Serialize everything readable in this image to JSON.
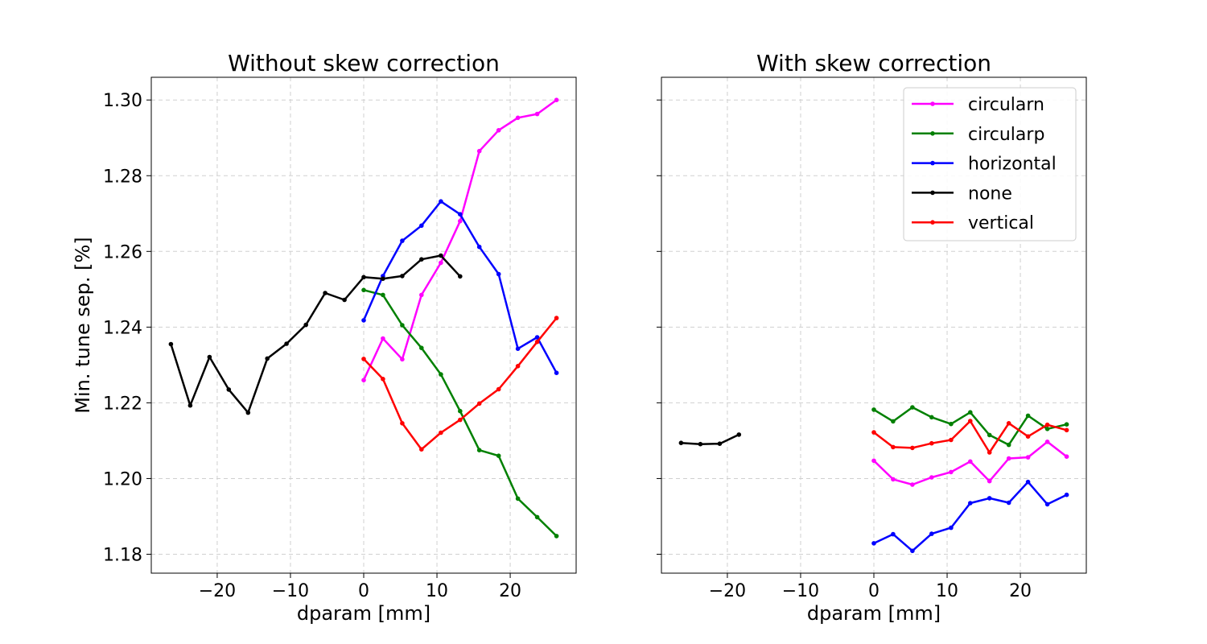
{
  "chart_data": [
    {
      "type": "line",
      "title": "Without skew correction",
      "xlabel": "dparam [mm]",
      "ylabel": "Min. tune sep. [%]",
      "xlim": [
        -29,
        29
      ],
      "ylim": [
        1.175,
        1.306
      ],
      "xticks": [
        -20,
        -10,
        0,
        10,
        20
      ],
      "xtick_labels": [
        "−20",
        "−10",
        "0",
        "10",
        "20"
      ],
      "yticks": [
        1.18,
        1.2,
        1.22,
        1.24,
        1.26,
        1.28,
        1.3
      ],
      "ytick_labels": [
        "1.18",
        "1.20",
        "1.22",
        "1.24",
        "1.26",
        "1.28",
        "1.30"
      ],
      "show_ytick_labels": true,
      "grid": true,
      "legend": false,
      "series": [
        {
          "name": "circularn",
          "color": "#ff00ff",
          "x": [
            0,
            2.63,
            5.26,
            7.89,
            10.53,
            13.16,
            15.79,
            18.42,
            21.05,
            23.68,
            26.32
          ],
          "y": [
            1.226,
            1.237,
            1.2315,
            1.2485,
            1.257,
            1.268,
            1.2865,
            1.292,
            1.2953,
            1.2963,
            1.3
          ]
        },
        {
          "name": "circularp",
          "color": "#008000",
          "x": [
            0,
            2.63,
            5.26,
            7.89,
            10.53,
            13.16,
            15.79,
            18.42,
            21.05,
            23.68,
            26.32
          ],
          "y": [
            1.2498,
            1.2485,
            1.2405,
            1.2345,
            1.2275,
            1.2178,
            1.2075,
            1.206,
            1.1947,
            1.1898,
            1.1848
          ]
        },
        {
          "name": "horizontal",
          "color": "#0000ff",
          "x": [
            0,
            2.63,
            5.26,
            7.89,
            10.53,
            13.16,
            15.79,
            18.42,
            21.05,
            23.68,
            26.32
          ],
          "y": [
            1.2418,
            1.2535,
            1.2628,
            1.2668,
            1.2732,
            1.2698,
            1.2612,
            1.254,
            1.2343,
            1.2373,
            1.2279
          ]
        },
        {
          "name": "none",
          "color": "#000000",
          "x": [
            -26.32,
            -23.68,
            -21.05,
            -18.42,
            -15.79,
            -13.16,
            -10.53,
            -7.89,
            -5.26,
            -2.63,
            0,
            2.63,
            5.26,
            7.89,
            10.53,
            13.16
          ],
          "y": [
            1.2355,
            1.2193,
            1.2321,
            1.2235,
            1.2174,
            1.2317,
            1.2356,
            1.2406,
            1.249,
            1.2472,
            1.2532,
            1.2528,
            1.2535,
            1.2579,
            1.2589,
            1.2534
          ]
        },
        {
          "name": "vertical",
          "color": "#ff0000",
          "x": [
            0,
            2.63,
            5.26,
            7.89,
            10.53,
            13.16,
            15.79,
            18.42,
            21.05,
            23.68,
            26.32
          ],
          "y": [
            1.2316,
            1.2263,
            1.2146,
            1.2077,
            1.2121,
            1.2155,
            1.2198,
            1.2236,
            1.2297,
            1.2361,
            1.2424
          ]
        }
      ]
    },
    {
      "type": "line",
      "title": "With skew correction",
      "xlabel": "dparam [mm]",
      "ylabel": "",
      "xlim": [
        -29,
        29
      ],
      "ylim": [
        1.175,
        1.306
      ],
      "xticks": [
        -20,
        -10,
        0,
        10,
        20
      ],
      "xtick_labels": [
        "−20",
        "−10",
        "0",
        "10",
        "20"
      ],
      "yticks": [
        1.18,
        1.2,
        1.22,
        1.24,
        1.26,
        1.28,
        1.3
      ],
      "ytick_labels": [],
      "show_ytick_labels": false,
      "grid": true,
      "legend": true,
      "legend_position": "upper right",
      "series": [
        {
          "name": "circularn",
          "color": "#ff00ff",
          "x": [
            0,
            2.63,
            5.26,
            7.89,
            10.53,
            13.16,
            15.79,
            18.42,
            21.05,
            23.68,
            26.32
          ],
          "y": [
            1.2047,
            1.1998,
            1.1984,
            1.2003,
            1.2017,
            1.2045,
            1.1993,
            1.2053,
            1.2056,
            1.2097,
            1.2058
          ]
        },
        {
          "name": "circularp",
          "color": "#008000",
          "x": [
            0,
            2.63,
            5.26,
            7.89,
            10.53,
            13.16,
            15.79,
            18.42,
            21.05,
            23.68,
            26.32
          ],
          "y": [
            1.2182,
            1.2151,
            1.2188,
            1.2162,
            1.2144,
            1.2175,
            1.2115,
            1.2089,
            1.2166,
            1.2131,
            1.2143
          ]
        },
        {
          "name": "horizontal",
          "color": "#0000ff",
          "x": [
            0,
            2.63,
            5.26,
            7.89,
            10.53,
            13.16,
            15.79,
            18.42,
            21.05,
            23.68,
            26.32
          ],
          "y": [
            1.1829,
            1.1853,
            1.1809,
            1.1854,
            1.187,
            1.1935,
            1.1948,
            1.1936,
            1.1991,
            1.1932,
            1.1957
          ]
        },
        {
          "name": "none",
          "color": "#000000",
          "x": [
            -26.32,
            -23.68,
            -21.05,
            -18.42
          ],
          "y": [
            1.2094,
            1.2091,
            1.2092,
            1.2116
          ]
        },
        {
          "name": "vertical",
          "color": "#ff0000",
          "x": [
            0,
            2.63,
            5.26,
            7.89,
            10.53,
            13.16,
            15.79,
            18.42,
            21.05,
            23.68,
            26.32
          ],
          "y": [
            1.2122,
            1.2083,
            1.2081,
            1.2093,
            1.2102,
            1.2152,
            1.2069,
            1.2146,
            1.2111,
            1.2142,
            1.2128
          ]
        }
      ]
    }
  ]
}
